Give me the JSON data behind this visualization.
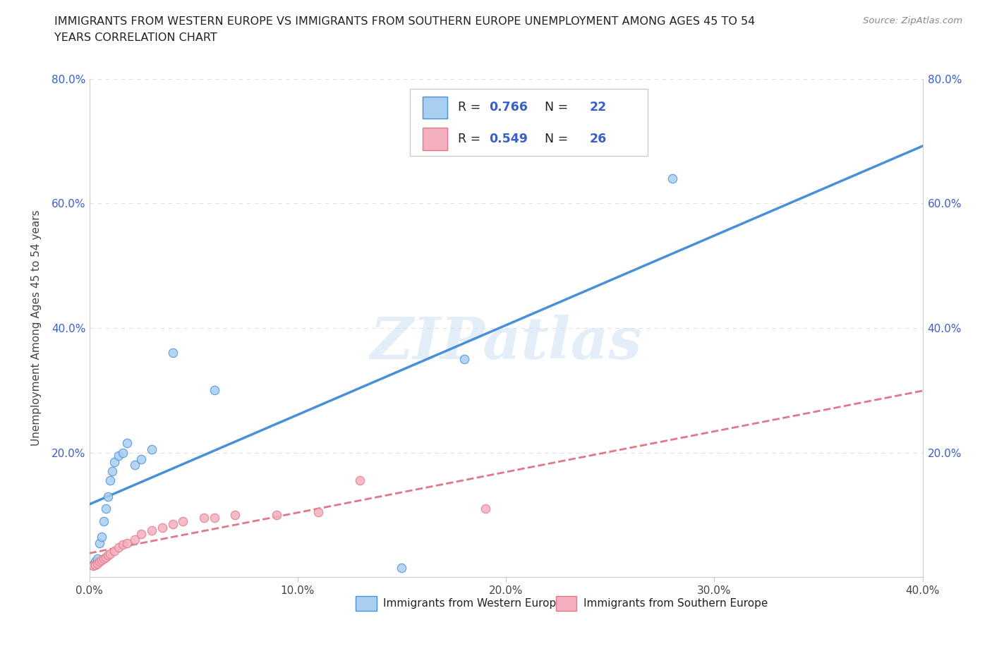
{
  "title_line1": "IMMIGRANTS FROM WESTERN EUROPE VS IMMIGRANTS FROM SOUTHERN EUROPE UNEMPLOYMENT AMONG AGES 45 TO 54",
  "title_line2": "YEARS CORRELATION CHART",
  "source": "Source: ZipAtlas.com",
  "ylabel": "Unemployment Among Ages 45 to 54 years",
  "xlim": [
    0.0,
    0.4
  ],
  "ylim": [
    0.0,
    0.8
  ],
  "xtick_vals": [
    0.0,
    0.1,
    0.2,
    0.3,
    0.4
  ],
  "xtick_labels": [
    "0.0%",
    "10.0%",
    "20.0%",
    "30.0%",
    "40.0%"
  ],
  "ytick_vals": [
    0.2,
    0.4,
    0.6,
    0.8
  ],
  "ytick_labels": [
    "20.0%",
    "40.0%",
    "60.0%",
    "80.0%"
  ],
  "western_europe_x": [
    0.002,
    0.003,
    0.004,
    0.005,
    0.006,
    0.007,
    0.008,
    0.009,
    0.01,
    0.011,
    0.012,
    0.014,
    0.016,
    0.018,
    0.022,
    0.025,
    0.03,
    0.04,
    0.06,
    0.15,
    0.18,
    0.28
  ],
  "western_europe_y": [
    0.02,
    0.025,
    0.03,
    0.055,
    0.065,
    0.09,
    0.11,
    0.13,
    0.155,
    0.17,
    0.185,
    0.195,
    0.2,
    0.215,
    0.18,
    0.19,
    0.205,
    0.36,
    0.3,
    0.015,
    0.35,
    0.64
  ],
  "southern_europe_x": [
    0.002,
    0.003,
    0.004,
    0.005,
    0.006,
    0.007,
    0.008,
    0.009,
    0.01,
    0.012,
    0.014,
    0.016,
    0.018,
    0.022,
    0.025,
    0.03,
    0.035,
    0.04,
    0.045,
    0.055,
    0.06,
    0.07,
    0.09,
    0.11,
    0.13,
    0.19
  ],
  "southern_europe_y": [
    0.018,
    0.02,
    0.022,
    0.025,
    0.028,
    0.03,
    0.032,
    0.035,
    0.038,
    0.042,
    0.048,
    0.052,
    0.055,
    0.06,
    0.07,
    0.075,
    0.08,
    0.085,
    0.09,
    0.095,
    0.095,
    0.1,
    0.1,
    0.105,
    0.155,
    0.11
  ],
  "western_color": "#a8cef0",
  "southern_color": "#f5b0c0",
  "western_line_color": "#4a90d8",
  "southern_line_color": "#e07888",
  "R_western": 0.766,
  "N_western": 22,
  "R_southern": 0.549,
  "N_southern": 26,
  "watermark_text": "ZIPatlas",
  "background_color": "#ffffff",
  "grid_color": "#e0e0e0",
  "blue_text_color": "#3a5fc8",
  "dark_text_color": "#222222"
}
